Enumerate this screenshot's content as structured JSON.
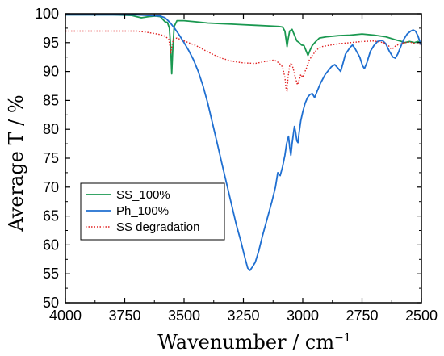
{
  "chart_data": {
    "type": "line",
    "xlabel": "Wavenumber / cm",
    "xlabel_sup": "−1",
    "ylabel": "Average T / %",
    "xlim": [
      4000,
      2500
    ],
    "ylim": [
      50,
      100
    ],
    "x_reversed": true,
    "x_ticks": [
      4000,
      3750,
      3500,
      3250,
      3000,
      2750,
      2500
    ],
    "y_ticks": [
      50,
      55,
      60,
      65,
      70,
      75,
      80,
      85,
      90,
      95,
      100
    ],
    "legend_position": "bottom-left",
    "grid": false,
    "series": [
      {
        "name": "SS_100%",
        "color": "#1a9850",
        "style": "solid",
        "points": [
          [
            4000,
            99.8
          ],
          [
            3900,
            99.8
          ],
          [
            3800,
            99.8
          ],
          [
            3720,
            99.7
          ],
          [
            3700,
            99.5
          ],
          [
            3680,
            99.3
          ],
          [
            3650,
            99.5
          ],
          [
            3620,
            99.6
          ],
          [
            3600,
            99.5
          ],
          [
            3580,
            98.6
          ],
          [
            3570,
            98.5
          ],
          [
            3562,
            97.5
          ],
          [
            3556,
            94.0
          ],
          [
            3552,
            89.6
          ],
          [
            3548,
            93.5
          ],
          [
            3542,
            97.8
          ],
          [
            3530,
            98.8
          ],
          [
            3500,
            98.8
          ],
          [
            3450,
            98.6
          ],
          [
            3400,
            98.4
          ],
          [
            3350,
            98.3
          ],
          [
            3300,
            98.2
          ],
          [
            3250,
            98.1
          ],
          [
            3200,
            98.0
          ],
          [
            3150,
            97.9
          ],
          [
            3100,
            97.8
          ],
          [
            3085,
            97.7
          ],
          [
            3075,
            97.0
          ],
          [
            3070,
            95.5
          ],
          [
            3066,
            94.3
          ],
          [
            3062,
            95.5
          ],
          [
            3055,
            97.0
          ],
          [
            3045,
            97.3
          ],
          [
            3035,
            96.3
          ],
          [
            3025,
            95.3
          ],
          [
            3015,
            95.0
          ],
          [
            3005,
            94.6
          ],
          [
            2995,
            94.5
          ],
          [
            2985,
            93.5
          ],
          [
            2978,
            92.8
          ],
          [
            2970,
            93.6
          ],
          [
            2960,
            94.5
          ],
          [
            2945,
            95.2
          ],
          [
            2930,
            95.8
          ],
          [
            2900,
            96.0
          ],
          [
            2850,
            96.2
          ],
          [
            2800,
            96.3
          ],
          [
            2750,
            96.5
          ],
          [
            2700,
            96.3
          ],
          [
            2650,
            96.0
          ],
          [
            2610,
            95.5
          ],
          [
            2590,
            95.3
          ],
          [
            2570,
            95.0
          ],
          [
            2550,
            95.2
          ],
          [
            2530,
            95.0
          ],
          [
            2515,
            95.2
          ],
          [
            2500,
            95.0
          ]
        ]
      },
      {
        "name": "Ph_100%",
        "color": "#1f6fd1",
        "style": "solid",
        "points": [
          [
            4000,
            99.8
          ],
          [
            3900,
            99.8
          ],
          [
            3800,
            99.8
          ],
          [
            3700,
            99.8
          ],
          [
            3650,
            99.7
          ],
          [
            3600,
            99.6
          ],
          [
            3580,
            99.3
          ],
          [
            3560,
            98.5
          ],
          [
            3540,
            97.5
          ],
          [
            3520,
            96.3
          ],
          [
            3500,
            95.0
          ],
          [
            3480,
            93.6
          ],
          [
            3460,
            92.0
          ],
          [
            3440,
            90.0
          ],
          [
            3420,
            87.5
          ],
          [
            3400,
            84.5
          ],
          [
            3380,
            81.0
          ],
          [
            3360,
            77.5
          ],
          [
            3340,
            74.0
          ],
          [
            3320,
            70.5
          ],
          [
            3300,
            67.0
          ],
          [
            3280,
            63.5
          ],
          [
            3260,
            60.5
          ],
          [
            3245,
            58.0
          ],
          [
            3232,
            56.0
          ],
          [
            3222,
            55.6
          ],
          [
            3212,
            56.2
          ],
          [
            3200,
            57.0
          ],
          [
            3185,
            59.0
          ],
          [
            3170,
            61.5
          ],
          [
            3150,
            64.5
          ],
          [
            3130,
            67.5
          ],
          [
            3115,
            70.0
          ],
          [
            3105,
            72.5
          ],
          [
            3095,
            72.0
          ],
          [
            3085,
            73.5
          ],
          [
            3075,
            75.5
          ],
          [
            3068,
            77.5
          ],
          [
            3060,
            78.8
          ],
          [
            3055,
            77.0
          ],
          [
            3050,
            75.5
          ],
          [
            3045,
            77.5
          ],
          [
            3040,
            79.0
          ],
          [
            3035,
            80.5
          ],
          [
            3030,
            79.5
          ],
          [
            3025,
            78.0
          ],
          [
            3020,
            77.7
          ],
          [
            3015,
            79.5
          ],
          [
            3008,
            81.5
          ],
          [
            3000,
            83.0
          ],
          [
            2990,
            84.5
          ],
          [
            2980,
            85.5
          ],
          [
            2970,
            86.0
          ],
          [
            2960,
            86.2
          ],
          [
            2950,
            85.5
          ],
          [
            2940,
            86.5
          ],
          [
            2925,
            88.0
          ],
          [
            2905,
            89.5
          ],
          [
            2880,
            90.8
          ],
          [
            2865,
            91.2
          ],
          [
            2850,
            90.5
          ],
          [
            2840,
            90.0
          ],
          [
            2830,
            91.5
          ],
          [
            2820,
            93.0
          ],
          [
            2800,
            94.2
          ],
          [
            2790,
            94.6
          ],
          [
            2780,
            94.0
          ],
          [
            2760,
            92.5
          ],
          [
            2748,
            91.0
          ],
          [
            2740,
            90.5
          ],
          [
            2730,
            91.5
          ],
          [
            2715,
            93.5
          ],
          [
            2700,
            94.5
          ],
          [
            2685,
            95.2
          ],
          [
            2665,
            95.4
          ],
          [
            2650,
            94.8
          ],
          [
            2635,
            93.5
          ],
          [
            2620,
            92.5
          ],
          [
            2610,
            92.3
          ],
          [
            2600,
            93.0
          ],
          [
            2590,
            94.0
          ],
          [
            2575,
            95.5
          ],
          [
            2560,
            96.5
          ],
          [
            2545,
            97.0
          ],
          [
            2535,
            97.2
          ],
          [
            2525,
            97.0
          ],
          [
            2515,
            96.2
          ],
          [
            2505,
            95.0
          ],
          [
            2500,
            94.5
          ]
        ]
      },
      {
        "name": "SS degradation",
        "color": "#e02020",
        "style": "dotted",
        "points": [
          [
            4000,
            97.0
          ],
          [
            3900,
            97.0
          ],
          [
            3800,
            97.0
          ],
          [
            3700,
            97.0
          ],
          [
            3660,
            96.8
          ],
          [
            3630,
            96.6
          ],
          [
            3600,
            96.4
          ],
          [
            3580,
            96.1
          ],
          [
            3565,
            95.6
          ],
          [
            3560,
            94.5
          ],
          [
            3556,
            93.2
          ],
          [
            3551,
            94.5
          ],
          [
            3545,
            95.6
          ],
          [
            3530,
            95.8
          ],
          [
            3500,
            95.3
          ],
          [
            3450,
            94.5
          ],
          [
            3400,
            93.4
          ],
          [
            3350,
            92.4
          ],
          [
            3300,
            91.8
          ],
          [
            3250,
            91.5
          ],
          [
            3200,
            91.4
          ],
          [
            3150,
            91.8
          ],
          [
            3120,
            92.0
          ],
          [
            3100,
            91.5
          ],
          [
            3085,
            90.8
          ],
          [
            3075,
            89.0
          ],
          [
            3070,
            87.0
          ],
          [
            3066,
            86.6
          ],
          [
            3062,
            89.0
          ],
          [
            3055,
            91.0
          ],
          [
            3048,
            91.5
          ],
          [
            3040,
            90.5
          ],
          [
            3030,
            88.8
          ],
          [
            3022,
            87.7
          ],
          [
            3015,
            88.5
          ],
          [
            3008,
            89.5
          ],
          [
            3000,
            89.0
          ],
          [
            2993,
            89.8
          ],
          [
            2985,
            90.5
          ],
          [
            2975,
            91.8
          ],
          [
            2960,
            92.8
          ],
          [
            2940,
            93.8
          ],
          [
            2920,
            94.3
          ],
          [
            2880,
            94.6
          ],
          [
            2850,
            94.8
          ],
          [
            2800,
            95.0
          ],
          [
            2750,
            95.2
          ],
          [
            2700,
            95.3
          ],
          [
            2660,
            95.0
          ],
          [
            2640,
            94.6
          ],
          [
            2630,
            94.0
          ],
          [
            2620,
            94.0
          ],
          [
            2610,
            94.4
          ],
          [
            2590,
            94.8
          ],
          [
            2570,
            95.0
          ],
          [
            2550,
            95.1
          ],
          [
            2530,
            94.9
          ],
          [
            2515,
            94.8
          ],
          [
            2500,
            94.7
          ]
        ]
      }
    ]
  }
}
